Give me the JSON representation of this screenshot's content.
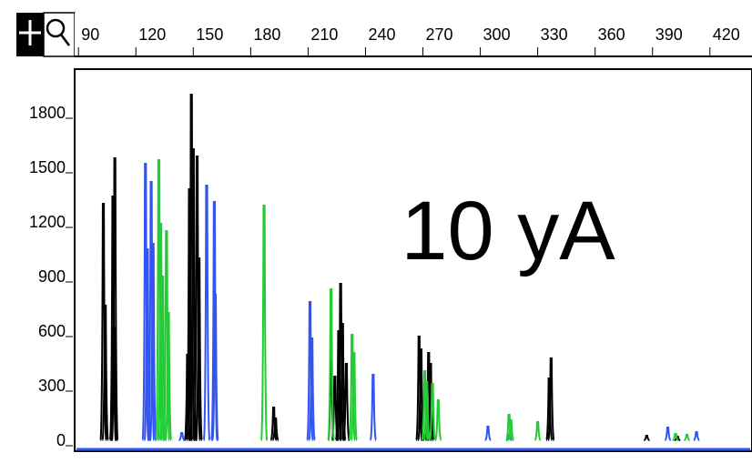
{
  "toolbar": {
    "crosshair_icon": "crosshair-icon",
    "zoom_icon": "magnifier-icon"
  },
  "annotation": "10 yA",
  "colors": {
    "black_trace": "#000000",
    "blue_trace": "#3355ee",
    "green_trace": "#22cc33",
    "baseline": "#3355ee",
    "toolbar_bg": "#000000"
  },
  "chart_data": {
    "type": "line",
    "title": "",
    "xlabel": "",
    "ylabel": "",
    "x_ticks": [
      90,
      120,
      150,
      180,
      210,
      240,
      270,
      300,
      330,
      360,
      390,
      420
    ],
    "y_ticks": [
      0,
      300,
      600,
      900,
      1200,
      1500,
      1800
    ],
    "xlim": [
      88,
      442
    ],
    "ylim": [
      -60,
      2040
    ],
    "grid": false,
    "legend": "none",
    "series": [
      {
        "color": "#000000",
        "peaks": [
          [
            103,
            1300
          ],
          [
            104,
            740
          ],
          [
            108,
            1340
          ],
          [
            109,
            1550
          ],
          [
            108.5,
            620
          ],
          [
            147,
            470
          ],
          [
            148,
            1380
          ],
          [
            149,
            1900
          ],
          [
            150,
            1600
          ],
          [
            152,
            1560
          ],
          [
            153,
            1000
          ],
          [
            192,
            180
          ],
          [
            193,
            120
          ],
          [
            222,
            450
          ],
          [
            224,
            350
          ],
          [
            226,
            600
          ],
          [
            227,
            860
          ],
          [
            228,
            640
          ],
          [
            230,
            420
          ],
          [
            268,
            570
          ],
          [
            269,
            500
          ],
          [
            273,
            480
          ],
          [
            274,
            420
          ],
          [
            337,
            450
          ],
          [
            336,
            340
          ],
          [
            387,
            25
          ],
          [
            403,
            20
          ]
        ]
      },
      {
        "color": "#3355ee",
        "peaks": [
          [
            125,
            1520
          ],
          [
            126,
            1050
          ],
          [
            128,
            1420
          ],
          [
            129,
            1080
          ],
          [
            144,
            40
          ],
          [
            157,
            1400
          ],
          [
            161,
            1310
          ],
          [
            161.5,
            800
          ],
          [
            211,
            760
          ],
          [
            212,
            560
          ],
          [
            244,
            360
          ],
          [
            304,
            75
          ],
          [
            315,
            30
          ],
          [
            398,
            70
          ],
          [
            413,
            45
          ]
        ]
      },
      {
        "color": "#22cc33",
        "peaks": [
          [
            132,
            1540
          ],
          [
            133,
            1190
          ],
          [
            134,
            900
          ],
          [
            136,
            1150
          ],
          [
            137,
            700
          ],
          [
            187,
            1290
          ],
          [
            222,
            830
          ],
          [
            233,
            580
          ],
          [
            234,
            480
          ],
          [
            271,
            380
          ],
          [
            272,
            320
          ],
          [
            275,
            310
          ],
          [
            278,
            220
          ],
          [
            315,
            140
          ],
          [
            316,
            110
          ],
          [
            330,
            100
          ],
          [
            402,
            35
          ],
          [
            408,
            30
          ]
        ]
      }
    ]
  }
}
